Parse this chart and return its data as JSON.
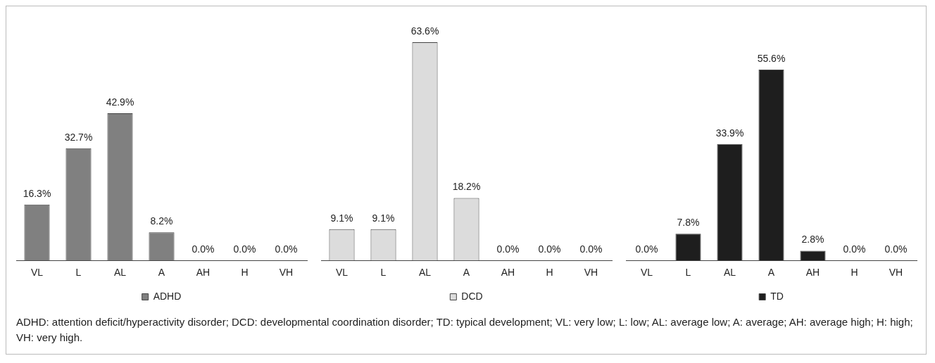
{
  "chart_data": [
    {
      "type": "bar",
      "categories": [
        "VL",
        "L",
        "AL",
        "A",
        "AH",
        "H",
        "VH"
      ],
      "series": [
        {
          "name": "ADHD",
          "color": "#808080",
          "values": [
            16.3,
            32.7,
            42.9,
            8.2,
            0.0,
            0.0,
            0.0
          ],
          "value_labels": [
            "16.3%",
            "32.7%",
            "42.9%",
            "8.2%",
            "0.0%",
            "0.0%",
            "0.0%"
          ]
        }
      ],
      "legend": "bottom",
      "annotations": [
        "ADHD: attention deficit/hyperactivity disorder; DCD: developmental coordination disorder; TD: typical development; VL: very low; L: low; AL: average low; A: average; AH: average high; H: high; VH: very high."
      ]
    },
    {
      "type": "bar",
      "categories": [
        "VL",
        "L",
        "AL",
        "A",
        "AH",
        "H",
        "VH"
      ],
      "series": [
        {
          "name": "DCD",
          "color": "#dcdcdc",
          "values": [
            9.1,
            9.1,
            63.6,
            18.2,
            0.0,
            0.0,
            0.0
          ],
          "value_labels": [
            "9.1%",
            "9.1%",
            "63.6%",
            "18.2%",
            "0.0%",
            "0.0%",
            "0.0%"
          ]
        }
      ],
      "legend": "bottom"
    },
    {
      "type": "bar",
      "categories": [
        "VL",
        "L",
        "AL",
        "A",
        "AH",
        "H",
        "VH"
      ],
      "series": [
        {
          "name": "TD",
          "color": "#1e1e1e",
          "values": [
            0.0,
            7.8,
            33.9,
            55.6,
            2.8,
            0.0,
            0.0
          ],
          "value_labels": [
            "0.0%",
            "7.8%",
            "33.9%",
            "55.6%",
            "2.8%",
            "0.0%",
            "0.0%"
          ]
        }
      ],
      "legend": "bottom"
    }
  ]
}
